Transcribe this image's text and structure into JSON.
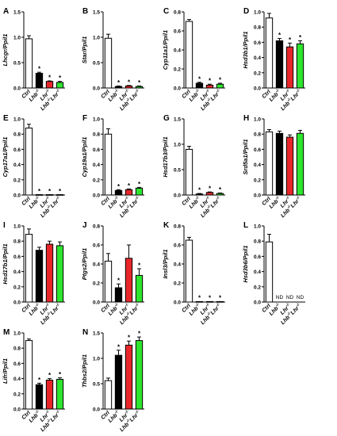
{
  "groups": [
    "Ctrl",
    "Lhb-/-",
    "Lhr-/-",
    "Lhb-/-Lhr-/-"
  ],
  "colors": {
    "Ctrl": "#ffffff",
    "Lhb-/-": "#000000",
    "Lhr-/-": "#e8262a",
    "Lhb-/-Lhr-/-": "#2ee62e"
  },
  "significance_marker": "*",
  "chart_data": [
    {
      "type": "bar",
      "panel": "A",
      "ylabel": "Lhcgr/Ppil1",
      "ylim": [
        0,
        1.5
      ],
      "yticks": [
        "0.0",
        "0.5",
        "1.0",
        "1.5"
      ],
      "values": [
        0.97,
        0.29,
        0.13,
        0.11
      ],
      "errors": [
        0.06,
        0.02,
        0.01,
        0.02
      ],
      "significant": [
        false,
        true,
        true,
        true
      ],
      "nd": [
        false,
        false,
        false,
        false
      ]
    },
    {
      "type": "bar",
      "panel": "B",
      "ylabel": "Star/Ppil1",
      "ylim": [
        0,
        1.5
      ],
      "yticks": [
        "0.0",
        "0.5",
        "1.0",
        "1.5"
      ],
      "values": [
        0.98,
        0.03,
        0.04,
        0.03
      ],
      "errors": [
        0.08,
        0.01,
        0.01,
        0.01
      ],
      "significant": [
        false,
        true,
        true,
        true
      ],
      "nd": [
        false,
        false,
        false,
        false
      ]
    },
    {
      "type": "bar",
      "panel": "C",
      "ylabel": "Cyp11a1/Ppil1",
      "ylim": [
        0,
        0.8
      ],
      "yticks": [
        "0.0",
        "0.2",
        "0.4",
        "0.6",
        "0.8"
      ],
      "values": [
        0.7,
        0.05,
        0.03,
        0.04
      ],
      "errors": [
        0.02,
        0.01,
        0.01,
        0.01
      ],
      "significant": [
        false,
        true,
        true,
        true
      ],
      "nd": [
        false,
        false,
        false,
        false
      ]
    },
    {
      "type": "bar",
      "panel": "D",
      "ylabel": "Hsd3b1/Ppil1",
      "ylim": [
        0,
        1.0
      ],
      "yticks": [
        "0.0",
        "0.2",
        "0.4",
        "0.6",
        "0.8",
        "1.0"
      ],
      "values": [
        0.92,
        0.62,
        0.54,
        0.58
      ],
      "errors": [
        0.06,
        0.03,
        0.05,
        0.04
      ],
      "significant": [
        false,
        true,
        true,
        true
      ],
      "nd": [
        false,
        false,
        false,
        false
      ]
    },
    {
      "type": "bar",
      "panel": "E",
      "ylabel": "Cyp17a1/Ppil1",
      "ylim": [
        0,
        1.0
      ],
      "yticks": [
        "0.0",
        "0.2",
        "0.4",
        "0.6",
        "0.8",
        "1.0"
      ],
      "values": [
        0.88,
        0.005,
        0.005,
        0.005
      ],
      "errors": [
        0.05,
        0.002,
        0.002,
        0.002
      ],
      "significant": [
        false,
        true,
        true,
        true
      ],
      "nd": [
        false,
        false,
        false,
        false
      ]
    },
    {
      "type": "bar",
      "panel": "F",
      "ylabel": "Cyp19a1/Ppil1",
      "ylim": [
        0,
        1.0
      ],
      "yticks": [
        "0.0",
        "0.2",
        "0.4",
        "0.6",
        "0.8",
        "1.0"
      ],
      "values": [
        0.8,
        0.06,
        0.07,
        0.09
      ],
      "errors": [
        0.07,
        0.01,
        0.01,
        0.01
      ],
      "significant": [
        false,
        true,
        true,
        true
      ],
      "nd": [
        false,
        false,
        false,
        false
      ]
    },
    {
      "type": "bar",
      "panel": "G",
      "ylabel": "Hsd17b3/Ppil1",
      "ylim": [
        0,
        1.5
      ],
      "yticks": [
        "0.0",
        "0.5",
        "1.0",
        "1.5"
      ],
      "values": [
        0.9,
        0.02,
        0.05,
        0.03
      ],
      "errors": [
        0.06,
        0.01,
        0.01,
        0.01
      ],
      "significant": [
        false,
        true,
        true,
        true
      ],
      "nd": [
        false,
        false,
        false,
        false
      ]
    },
    {
      "type": "bar",
      "panel": "H",
      "ylabel": "Srd5a1/Ppil1",
      "ylim": [
        0,
        1.0
      ],
      "yticks": [
        "0.0",
        "0.2",
        "0.4",
        "0.6",
        "0.8",
        "1.0"
      ],
      "values": [
        0.83,
        0.81,
        0.76,
        0.81
      ],
      "errors": [
        0.03,
        0.03,
        0.03,
        0.04
      ],
      "significant": [
        false,
        false,
        false,
        false
      ],
      "nd": [
        false,
        false,
        false,
        false
      ]
    },
    {
      "type": "bar",
      "panel": "I",
      "ylabel": "Hsd17b1/Ppil1",
      "ylim": [
        0,
        1.0
      ],
      "yticks": [
        "0.0",
        "0.2",
        "0.4",
        "0.6",
        "0.8",
        "1.0"
      ],
      "values": [
        0.89,
        0.68,
        0.76,
        0.74
      ],
      "errors": [
        0.07,
        0.04,
        0.04,
        0.05
      ],
      "significant": [
        false,
        false,
        false,
        false
      ],
      "nd": [
        false,
        false,
        false,
        false
      ]
    },
    {
      "type": "bar",
      "panel": "J",
      "ylabel": "Ptgs2/Ppil1",
      "ylim": [
        0,
        0.8
      ],
      "yticks": [
        "0.0",
        "0.2",
        "0.4",
        "0.6",
        "0.8"
      ],
      "values": [
        0.43,
        0.15,
        0.46,
        0.28
      ],
      "errors": [
        0.08,
        0.04,
        0.14,
        0.07
      ],
      "significant": [
        false,
        true,
        false,
        true
      ],
      "nd": [
        false,
        false,
        false,
        false
      ]
    },
    {
      "type": "bar",
      "panel": "K",
      "ylabel": "Insl3/Ppil1",
      "ylim": [
        0,
        0.8
      ],
      "yticks": [
        "0.0",
        "0.2",
        "0.4",
        "0.6",
        "0.8"
      ],
      "values": [
        0.65,
        0.005,
        0.005,
        0.005
      ],
      "errors": [
        0.03,
        0.002,
        0.002,
        0.002
      ],
      "significant": [
        false,
        true,
        true,
        true
      ],
      "nd": [
        false,
        false,
        false,
        false
      ]
    },
    {
      "type": "bar",
      "panel": "L",
      "ylabel": "Hsd3b6/Ppil1",
      "ylim": [
        0,
        1.0
      ],
      "yticks": [
        "0.0",
        "0.2",
        "0.4",
        "0.6",
        "0.8",
        "1.0"
      ],
      "values": [
        0.79,
        0,
        0,
        0
      ],
      "errors": [
        0.1,
        0,
        0,
        0
      ],
      "significant": [
        false,
        false,
        false,
        false
      ],
      "nd": [
        false,
        true,
        true,
        true
      ],
      "nd_label": "ND"
    },
    {
      "type": "bar",
      "panel": "M",
      "ylabel": "Lifr/Ppil1",
      "ylim": [
        0,
        1.0
      ],
      "yticks": [
        "0.0",
        "0.2",
        "0.4",
        "0.6",
        "0.8",
        "1.0"
      ],
      "values": [
        0.9,
        0.32,
        0.38,
        0.39
      ],
      "errors": [
        0.02,
        0.02,
        0.02,
        0.02
      ],
      "significant": [
        false,
        true,
        true,
        true
      ],
      "nd": [
        false,
        false,
        false,
        false
      ]
    },
    {
      "type": "bar",
      "panel": "N",
      "ylabel": "Thbs2/Ppil1",
      "ylim": [
        0,
        1.5
      ],
      "yticks": [
        "0.0",
        "0.5",
        "1.0",
        "1.5"
      ],
      "values": [
        0.56,
        1.06,
        1.26,
        1.35
      ],
      "errors": [
        0.05,
        0.1,
        0.08,
        0.07
      ],
      "significant": [
        false,
        true,
        true,
        true
      ],
      "nd": [
        false,
        false,
        false,
        false
      ]
    }
  ]
}
